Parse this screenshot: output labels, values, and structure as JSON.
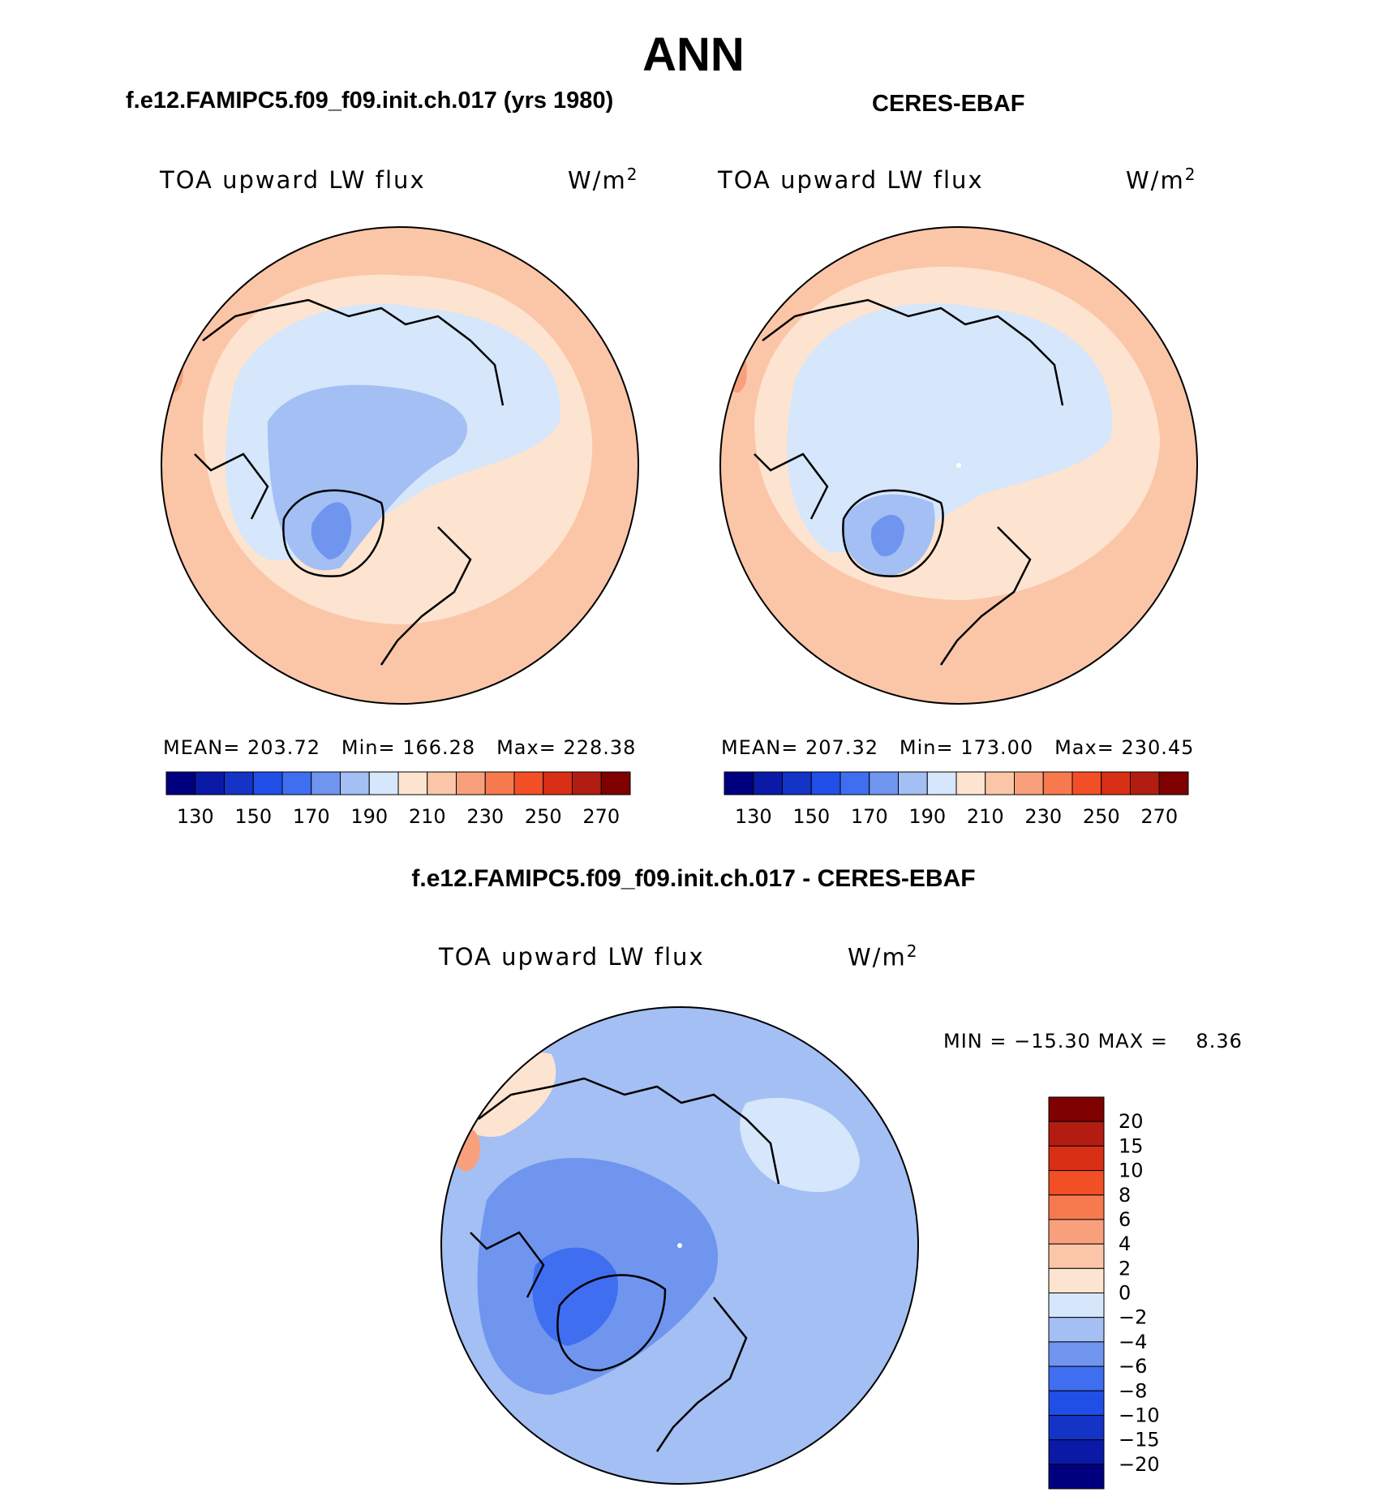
{
  "title": "ANN",
  "panels": [
    {
      "heading": "f.e12.FAMIPC5.f09_f09.init.ch.017 (yrs 1980)",
      "variable": "TOA upward LW flux",
      "units_base": "W/m",
      "units_exp": "2",
      "mean_label": "MEAN=",
      "mean_value": "203.72",
      "min_label": "Min=",
      "min_value": "166.28",
      "max_label": "Max=",
      "max_value": "228.38"
    },
    {
      "heading": "CERES-EBAF",
      "variable": "TOA upward LW flux",
      "units_base": "W/m",
      "units_exp": "2",
      "mean_label": "MEAN=",
      "mean_value": "207.32",
      "min_label": "Min=",
      "min_value": "173.00",
      "max_label": "Max=",
      "max_value": "230.45"
    }
  ],
  "abs_colorbar": {
    "levels": [
      130,
      140,
      150,
      160,
      170,
      180,
      190,
      200,
      210,
      220,
      230,
      240,
      250,
      260,
      270
    ],
    "tick_labels": [
      "130",
      "150",
      "170",
      "190",
      "210",
      "230",
      "250",
      "270"
    ],
    "colors": [
      "#00007f",
      "#0a1aa6",
      "#1433c7",
      "#1f4fe6",
      "#3f6ef0",
      "#6f95ef",
      "#a3bff3",
      "#d6e6fb",
      "#fde4d0",
      "#fbc6a8",
      "#f8a07c",
      "#f77a4f",
      "#f24f26",
      "#d93015",
      "#b31c10",
      "#7f0000"
    ]
  },
  "difference": {
    "heading": "f.e12.FAMIPC5.f09_f09.init.ch.017 - CERES-EBAF",
    "variable": "TOA upward LW flux",
    "units_base": "W/m",
    "units_exp": "2",
    "min_label": "MIN =",
    "min_value": "−15.30",
    "max_label": "MAX =",
    "max_value": "8.36",
    "tick_labels": [
      "20",
      "15",
      "10",
      "8",
      "6",
      "4",
      "2",
      "0",
      "−2",
      "−4",
      "−6",
      "−8",
      "−10",
      "−15",
      "−20"
    ],
    "colors": [
      "#7f0000",
      "#b31c10",
      "#d93015",
      "#f24f26",
      "#f77a4f",
      "#f8a07c",
      "#fbc6a8",
      "#fde4d0",
      "#d6e6fb",
      "#a3bff3",
      "#6f95ef",
      "#3f6ef0",
      "#1f4fe6",
      "#1433c7",
      "#0a1aa6",
      "#00007f"
    ]
  },
  "map_colors": {
    "warm_outer": "#fbc6a8",
    "warm_mid": "#fde4d0",
    "cool_light": "#d6e6fb",
    "cool_mid": "#a3bff3",
    "cool_dark": "#6f95ef",
    "cool_darker": "#3f6ef0",
    "coast": "#000000"
  }
}
